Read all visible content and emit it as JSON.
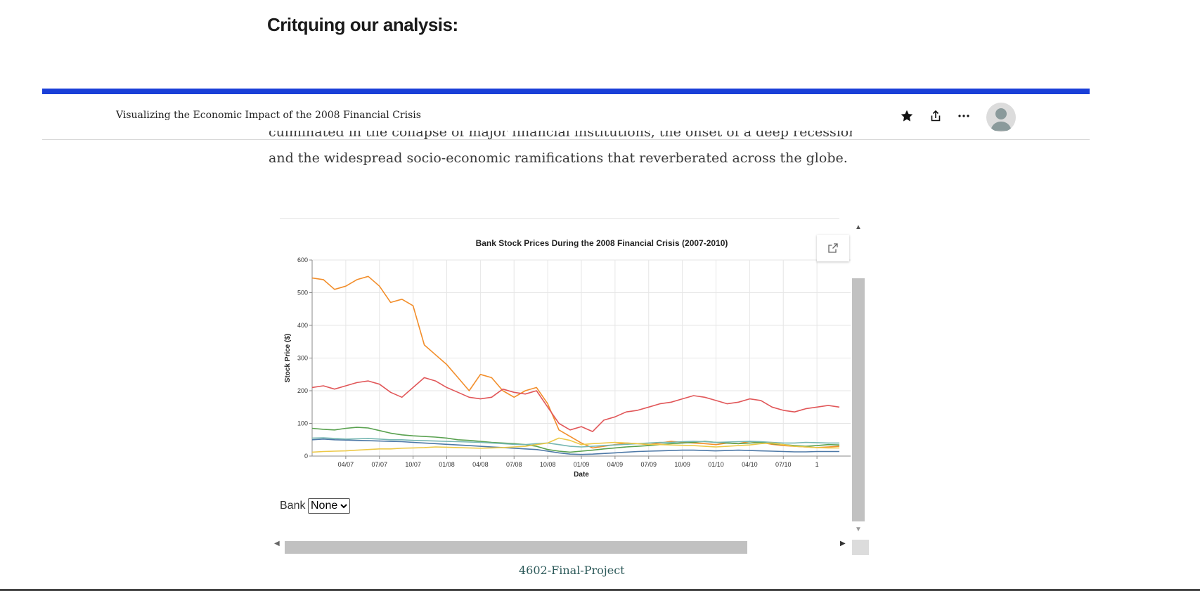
{
  "section": {
    "heading": "Critquing our analysis:"
  },
  "topbar": {
    "story_title": "Visualizing the Economic Impact of the 2008 Financial Crisis",
    "icons": [
      "star-icon",
      "share-icon",
      "more-icon",
      "avatar"
    ]
  },
  "article": {
    "cut_line": "culminated in the collapse of major financial institutions, the onset of a deep recession,",
    "line": "and the widespread socio-economic ramifications that reverberated across the globe."
  },
  "embed": {
    "bank_label": "Bank",
    "bank_selected": "None",
    "repo": "4602-Final-Project"
  },
  "colors": {
    "accent_bar": "#1a3fd8",
    "orange": "#f28e2b",
    "red": "#e15759",
    "green": "#59a14f",
    "blue": "#4e79a7",
    "teal": "#76b7b2",
    "yellow": "#edc948"
  },
  "chart_data": {
    "type": "line",
    "title": "Bank Stock Prices During the 2008 Financial Crisis (2007-2010)",
    "xlabel": "Date",
    "ylabel": "Stock Price ($)",
    "ylim": [
      0,
      600
    ],
    "yticks": [
      0,
      100,
      200,
      300,
      400,
      500,
      600
    ],
    "xlim": [
      0,
      48
    ],
    "xticks": [
      {
        "label": "04/07",
        "x": 3
      },
      {
        "label": "07/07",
        "x": 6
      },
      {
        "label": "10/07",
        "x": 9
      },
      {
        "label": "01/08",
        "x": 12
      },
      {
        "label": "04/08",
        "x": 15
      },
      {
        "label": "07/08",
        "x": 18
      },
      {
        "label": "10/08",
        "x": 21
      },
      {
        "label": "01/09",
        "x": 24
      },
      {
        "label": "04/09",
        "x": 27
      },
      {
        "label": "07/09",
        "x": 30
      },
      {
        "label": "10/09",
        "x": 33
      },
      {
        "label": "01/10",
        "x": 36
      },
      {
        "label": "04/10",
        "x": 39
      },
      {
        "label": "07/10",
        "x": 42
      },
      {
        "label": "1",
        "x": 45
      }
    ],
    "series": [
      {
        "name": "orange",
        "color": "#f28e2b",
        "x": [
          0,
          1,
          2,
          3,
          4,
          5,
          6,
          7,
          8,
          9,
          10,
          11,
          12,
          13,
          14,
          15,
          16,
          17,
          18,
          19,
          20,
          21,
          22,
          23,
          24,
          25,
          26,
          27,
          28,
          29,
          30,
          31,
          32,
          33,
          34,
          35,
          36,
          37,
          38,
          39,
          40,
          41,
          42,
          43,
          44,
          45,
          46,
          47
        ],
        "values": [
          545,
          540,
          510,
          520,
          540,
          550,
          520,
          470,
          480,
          460,
          340,
          310,
          280,
          240,
          200,
          250,
          240,
          200,
          180,
          200,
          210,
          160,
          80,
          60,
          40,
          25,
          30,
          35,
          40,
          38,
          35,
          40,
          45,
          42,
          40,
          38,
          35,
          40,
          38,
          45,
          42,
          36,
          32,
          30,
          28,
          26,
          28,
          30
        ]
      },
      {
        "name": "red",
        "color": "#e15759",
        "x": [
          0,
          1,
          2,
          3,
          4,
          5,
          6,
          7,
          8,
          9,
          10,
          11,
          12,
          13,
          14,
          15,
          16,
          17,
          18,
          19,
          20,
          21,
          22,
          23,
          24,
          25,
          26,
          27,
          28,
          29,
          30,
          31,
          32,
          33,
          34,
          35,
          36,
          37,
          38,
          39,
          40,
          41,
          42,
          43,
          44,
          45,
          46,
          47
        ],
        "values": [
          210,
          215,
          205,
          215,
          225,
          230,
          220,
          195,
          180,
          210,
          240,
          230,
          210,
          195,
          180,
          175,
          180,
          205,
          195,
          190,
          200,
          150,
          100,
          80,
          90,
          75,
          110,
          120,
          135,
          140,
          150,
          160,
          165,
          175,
          185,
          180,
          170,
          160,
          165,
          175,
          170,
          150,
          140,
          135,
          145,
          150,
          155,
          150
        ]
      },
      {
        "name": "green",
        "color": "#59a14f",
        "x": [
          0,
          1,
          2,
          3,
          4,
          5,
          6,
          7,
          8,
          9,
          10,
          11,
          12,
          13,
          14,
          15,
          16,
          17,
          18,
          19,
          20,
          21,
          22,
          23,
          24,
          25,
          26,
          27,
          28,
          29,
          30,
          31,
          32,
          33,
          34,
          35,
          36,
          37,
          38,
          39,
          40,
          41,
          42,
          43,
          44,
          45,
          46,
          47
        ],
        "values": [
          85,
          82,
          80,
          85,
          88,
          86,
          78,
          70,
          65,
          62,
          60,
          58,
          55,
          50,
          48,
          45,
          42,
          40,
          38,
          35,
          30,
          20,
          15,
          12,
          15,
          18,
          22,
          25,
          28,
          30,
          32,
          35,
          38,
          40,
          42,
          45,
          42,
          40,
          38,
          40,
          42,
          38,
          35,
          32,
          30,
          32,
          35,
          34
        ]
      },
      {
        "name": "blue",
        "color": "#4e79a7",
        "x": [
          0,
          1,
          2,
          3,
          4,
          5,
          6,
          7,
          8,
          9,
          10,
          11,
          12,
          13,
          14,
          15,
          16,
          17,
          18,
          19,
          20,
          21,
          22,
          23,
          24,
          25,
          26,
          27,
          28,
          29,
          30,
          31,
          32,
          33,
          34,
          35,
          36,
          37,
          38,
          39,
          40,
          41,
          42,
          43,
          44,
          45,
          46,
          47
        ],
        "values": [
          50,
          52,
          50,
          49,
          48,
          47,
          46,
          45,
          44,
          42,
          40,
          38,
          36,
          34,
          32,
          30,
          28,
          26,
          24,
          22,
          20,
          15,
          10,
          6,
          5,
          6,
          8,
          10,
          12,
          14,
          15,
          16,
          17,
          18,
          18,
          17,
          16,
          17,
          18,
          17,
          16,
          15,
          14,
          13,
          13,
          14,
          14,
          14
        ]
      },
      {
        "name": "teal",
        "color": "#76b7b2",
        "x": [
          0,
          1,
          2,
          3,
          4,
          5,
          6,
          7,
          8,
          9,
          10,
          11,
          12,
          13,
          14,
          15,
          16,
          17,
          18,
          19,
          20,
          21,
          22,
          23,
          24,
          25,
          26,
          27,
          28,
          29,
          30,
          31,
          32,
          33,
          34,
          35,
          36,
          37,
          38,
          39,
          40,
          41,
          42,
          43,
          44,
          45,
          46,
          47
        ],
        "values": [
          55,
          56,
          54,
          52,
          53,
          54,
          52,
          50,
          50,
          48,
          47,
          46,
          45,
          44,
          43,
          42,
          40,
          38,
          36,
          35,
          38,
          40,
          35,
          30,
          28,
          30,
          32,
          34,
          36,
          38,
          40,
          42,
          42,
          44,
          45,
          44,
          42,
          43,
          44,
          45,
          44,
          42,
          40,
          40,
          42,
          41,
          40,
          40
        ]
      },
      {
        "name": "yellow",
        "color": "#edc948",
        "x": [
          0,
          1,
          2,
          3,
          4,
          5,
          6,
          7,
          8,
          9,
          10,
          11,
          12,
          13,
          14,
          15,
          16,
          17,
          18,
          19,
          20,
          21,
          22,
          23,
          24,
          25,
          26,
          27,
          28,
          29,
          30,
          31,
          32,
          33,
          34,
          35,
          36,
          37,
          38,
          39,
          40,
          41,
          42,
          43,
          44,
          45,
          46,
          47
        ],
        "values": [
          12,
          14,
          15,
          16,
          18,
          20,
          22,
          22,
          24,
          25,
          26,
          28,
          27,
          26,
          25,
          24,
          25,
          26,
          28,
          30,
          35,
          40,
          55,
          48,
          35,
          38,
          40,
          42,
          40,
          38,
          36,
          35,
          34,
          33,
          32,
          30,
          28,
          30,
          32,
          34,
          38,
          40,
          35,
          30,
          28,
          26,
          25,
          25
        ]
      }
    ]
  }
}
